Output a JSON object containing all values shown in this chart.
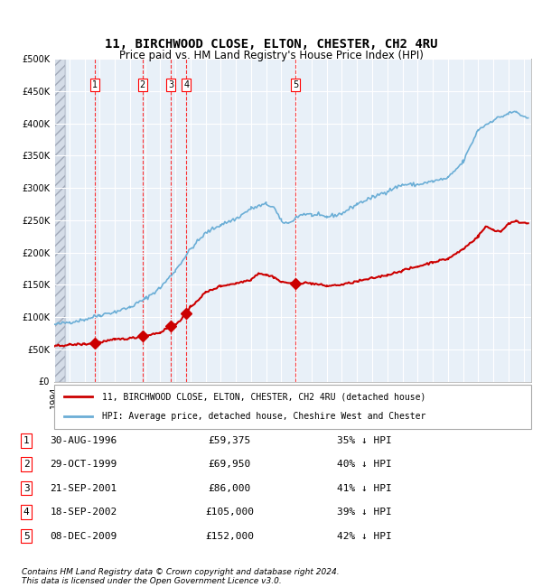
{
  "title1": "11, BIRCHWOOD CLOSE, ELTON, CHESTER, CH2 4RU",
  "title2": "Price paid vs. HM Land Registry's House Price Index (HPI)",
  "hpi_color": "#6baed6",
  "price_color": "#cc0000",
  "bg_color": "#ddeeff",
  "plot_bg": "#e8f0f8",
  "hatch_color": "#c0c8d8",
  "transactions": [
    {
      "label": "1",
      "date": "30-AUG-1996",
      "year": 1996.66,
      "price": 59375,
      "pct": "35% ↓ HPI"
    },
    {
      "label": "2",
      "date": "29-OCT-1999",
      "year": 1999.83,
      "price": 69950,
      "pct": "40% ↓ HPI"
    },
    {
      "label": "3",
      "date": "21-SEP-2001",
      "year": 2001.72,
      "price": 86000,
      "pct": "41% ↓ HPI"
    },
    {
      "label": "4",
      "date": "18-SEP-2002",
      "year": 2002.72,
      "price": 105000,
      "pct": "39% ↓ HPI"
    },
    {
      "label": "5",
      "date": "08-DEC-2009",
      "year": 2009.94,
      "price": 152000,
      "pct": "42% ↓ HPI"
    }
  ],
  "legend1": "11, BIRCHWOOD CLOSE, ELTON, CHESTER, CH2 4RU (detached house)",
  "legend2": "HPI: Average price, detached house, Cheshire West and Chester",
  "footnote1": "Contains HM Land Registry data © Crown copyright and database right 2024.",
  "footnote2": "This data is licensed under the Open Government Licence v3.0.",
  "ylim": [
    0,
    500000
  ],
  "xlim_start": 1994.0,
  "xlim_end": 2025.5
}
